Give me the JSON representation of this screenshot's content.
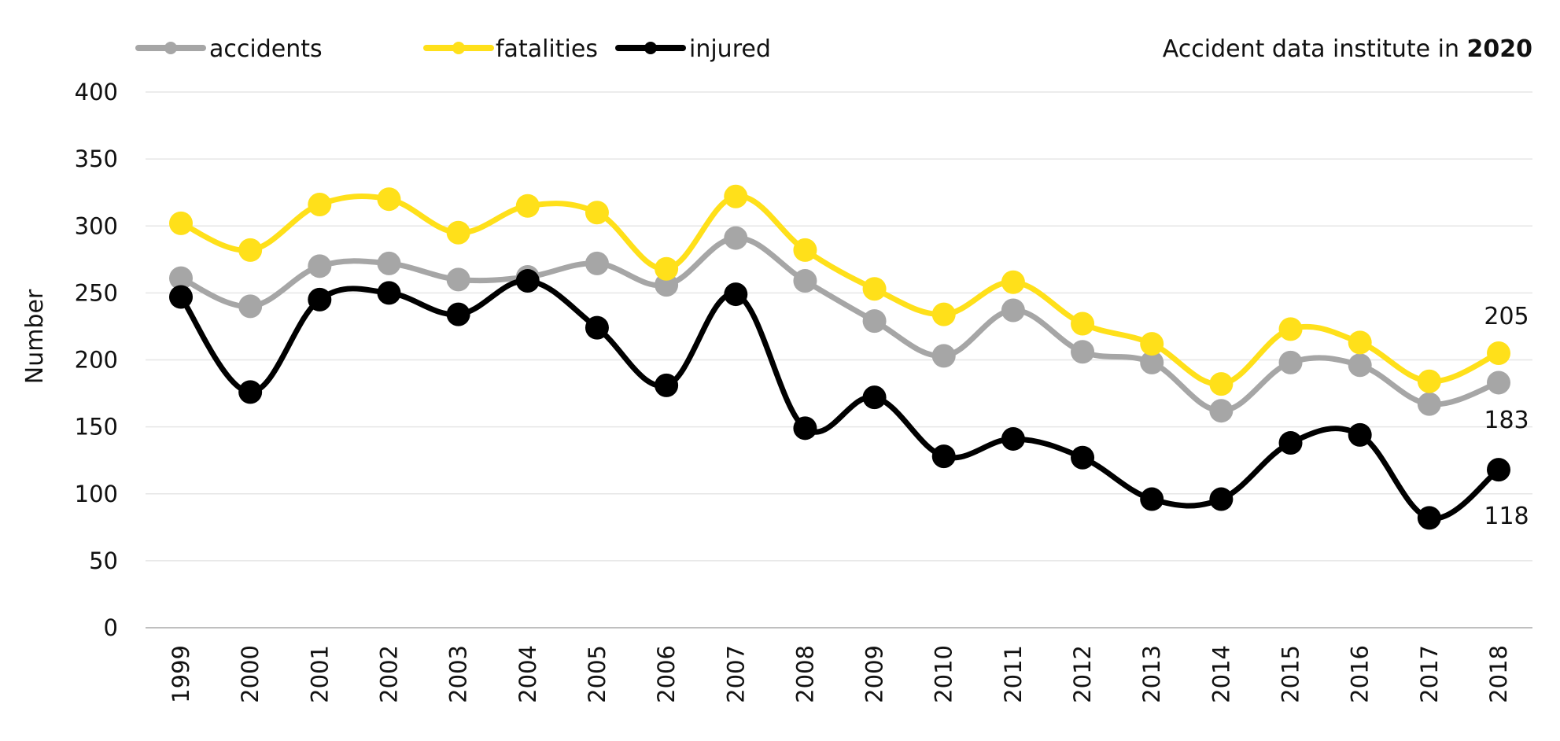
{
  "chart_data": {
    "type": "line",
    "title": "",
    "note": {
      "prefix": "Accident data institute in ",
      "emphasis": "2020"
    },
    "xlabel": "",
    "ylabel": "Number",
    "ylim": [
      0,
      400
    ],
    "yticks": [
      "0",
      "50",
      "100",
      "150",
      "200",
      "250",
      "300",
      "350",
      "400"
    ],
    "grid": true,
    "legend_position": "top-left",
    "categories": [
      "1999",
      "2000",
      "2001",
      "2002",
      "2003",
      "2004",
      "2005",
      "2006",
      "2007",
      "2008",
      "2009",
      "2010",
      "2011",
      "2012",
      "2013",
      "2014",
      "2015",
      "2016",
      "2017",
      "2018"
    ],
    "series": [
      {
        "name": "accidents",
        "color": "#a6a6a6",
        "values": [
          261,
          240,
          270,
          272,
          260,
          262,
          272,
          256,
          291,
          259,
          229,
          203,
          237,
          206,
          198,
          162,
          198,
          196,
          167,
          183
        ]
      },
      {
        "name": "fatalities",
        "color": "#ffe01a",
        "values": [
          302,
          282,
          316,
          320,
          295,
          315,
          310,
          268,
          322,
          282,
          253,
          234,
          258,
          227,
          212,
          182,
          223,
          213,
          184,
          205
        ]
      },
      {
        "name": "injured",
        "color": "#000000",
        "values": [
          247,
          176,
          245,
          250,
          234,
          259,
          224,
          181,
          249,
          149,
          172,
          128,
          141,
          127,
          96,
          96,
          138,
          144,
          82,
          118
        ]
      }
    ],
    "end_labels": [
      "205",
      "183",
      "118"
    ]
  }
}
